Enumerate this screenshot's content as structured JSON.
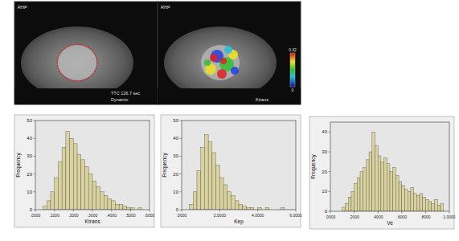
{
  "chart_data": [
    {
      "type": "histogram",
      "x_label": "Ktrans",
      "y_label": "Frequency",
      "color": "#d8d1a0",
      "bins": [
        0.04,
        0.06,
        0.08,
        0.1,
        0.12,
        0.14,
        0.16,
        0.18,
        0.2,
        0.22,
        0.24,
        0.26,
        0.28,
        0.3,
        0.32,
        0.34,
        0.36,
        0.38,
        0.4,
        0.42,
        0.44,
        0.46,
        0.48,
        0.5,
        0.52,
        0.54,
        0.56
      ],
      "values": [
        2,
        5,
        10,
        18,
        27,
        35,
        44,
        40,
        37,
        31,
        28,
        24,
        20,
        16,
        13,
        10,
        8,
        6,
        5,
        3,
        3,
        2,
        1,
        1,
        0,
        1
      ],
      "xlim": [
        0,
        0.6
      ],
      "xticks": [
        {
          "value": 0,
          "label": ".0000"
        },
        {
          "value": 0.1,
          "label": ".1000"
        },
        {
          "value": 0.2,
          "label": ".2000"
        },
        {
          "value": 0.3,
          "label": ".3000"
        },
        {
          "value": 0.4,
          "label": ".4000"
        },
        {
          "value": 0.5,
          "label": ".5000"
        },
        {
          "value": 0.6,
          "label": ".6000"
        }
      ],
      "ylim": [
        0,
        50
      ],
      "yticks": [
        0,
        10,
        20,
        30,
        40,
        50
      ]
    },
    {
      "type": "histogram",
      "x_label": "Kep",
      "y_label": "Frequency",
      "color": "#d8d1a0",
      "bins": [
        0.4,
        0.6,
        0.8,
        1.0,
        1.2,
        1.4,
        1.6,
        1.8,
        2.0,
        2.2,
        2.4,
        2.6,
        2.8,
        3.0,
        3.2,
        3.4,
        3.6,
        3.8,
        4.0,
        4.2,
        4.4,
        4.6,
        4.8,
        5.0,
        5.2,
        5.4
      ],
      "values": [
        3,
        10,
        22,
        35,
        42,
        38,
        32,
        25,
        18,
        14,
        10,
        8,
        5,
        3,
        2,
        1,
        1,
        0,
        1,
        0,
        1,
        0,
        0,
        0,
        1
      ],
      "xlim": [
        0,
        6
      ],
      "xticks": [
        {
          "value": 0,
          "label": ".0000"
        },
        {
          "value": 2,
          "label": "2.0000"
        },
        {
          "value": 4,
          "label": "4.0000"
        },
        {
          "value": 6,
          "label": "6.0000"
        }
      ],
      "ylim": [
        0,
        50
      ],
      "yticks": [
        0,
        10,
        20,
        30,
        40,
        50
      ]
    },
    {
      "type": "histogram",
      "x_label": "Ve",
      "y_label": "Frequency",
      "color": "#d8d1a0",
      "bins": [
        0.1,
        0.125,
        0.15,
        0.175,
        0.2,
        0.225,
        0.25,
        0.275,
        0.3,
        0.325,
        0.35,
        0.375,
        0.4,
        0.425,
        0.45,
        0.475,
        0.5,
        0.525,
        0.55,
        0.575,
        0.6,
        0.625,
        0.65,
        0.675,
        0.7,
        0.725,
        0.75,
        0.775,
        0.8,
        0.825,
        0.85,
        0.875,
        0.9,
        0.925,
        0.95
      ],
      "values": [
        2,
        4,
        7,
        10,
        14,
        17,
        20,
        22,
        26,
        30,
        40,
        33,
        28,
        25,
        27,
        24,
        20,
        22,
        18,
        15,
        13,
        11,
        10,
        12,
        9,
        8,
        9,
        7,
        6,
        5,
        4,
        6,
        3,
        4
      ],
      "xlim": [
        0,
        1
      ],
      "xticks": [
        {
          "value": 0,
          "label": ".0000"
        },
        {
          "value": 0.2,
          "label": ".2000"
        },
        {
          "value": 0.4,
          "label": ".4000"
        },
        {
          "value": 0.6,
          "label": ".6000"
        },
        {
          "value": 0.8,
          "label": ".8000"
        },
        {
          "value": 1,
          "label": "1.0000"
        }
      ],
      "ylim": [
        0,
        45
      ],
      "yticks": [
        0,
        10,
        20,
        30,
        40
      ]
    }
  ],
  "images": {
    "left": {
      "texts": [
        "RHP",
        "TTC 126.7 sec",
        "Dynamic"
      ]
    },
    "right": {
      "texts": [
        "RHP",
        "Ktrans"
      ]
    },
    "colorbar": {
      "range": [
        0,
        0.32
      ],
      "ticks": [
        0,
        0.32
      ]
    }
  }
}
